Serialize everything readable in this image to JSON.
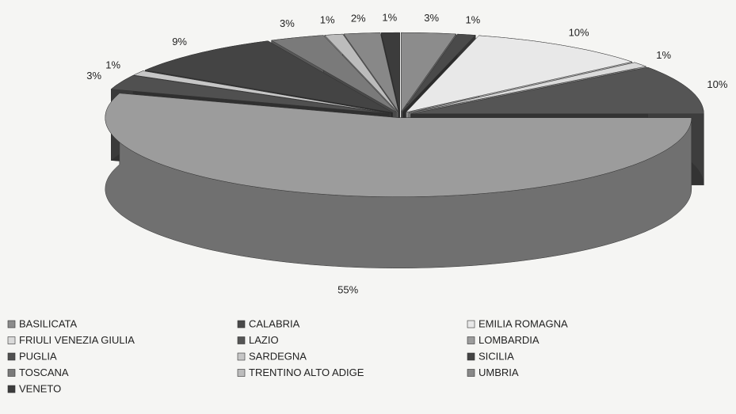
{
  "chart_data": {
    "type": "pie",
    "categories": [
      "BASILICATA",
      "CALABRIA",
      "EMILIA ROMAGNA",
      "FRIULI VENEZIA GIULIA",
      "LAZIO",
      "LOMBARDIA",
      "PUGLIA",
      "SARDEGNA",
      "SICILIA",
      "TOSCANA",
      "TRENTINO ALTO ADIGE",
      "UMBRIA",
      "VENETO"
    ],
    "values": [
      3,
      1,
      10,
      1,
      10,
      55,
      3,
      1,
      9,
      3,
      1,
      2,
      1
    ],
    "value_labels": [
      "3%",
      "1%",
      "10%",
      "1%",
      "10%",
      "55%",
      "3%",
      "1%",
      "9%",
      "3%",
      "1%",
      "2%",
      "1%"
    ],
    "colors": [
      "#8c8c8c",
      "#4a4a4a",
      "#e8e8e8",
      "#dadada",
      "#555555",
      "#9c9c9c",
      "#505050",
      "#c6c6c6",
      "#444444",
      "#7a7a7a",
      "#bcbcbc",
      "#888888",
      "#3c3c3c"
    ]
  }
}
